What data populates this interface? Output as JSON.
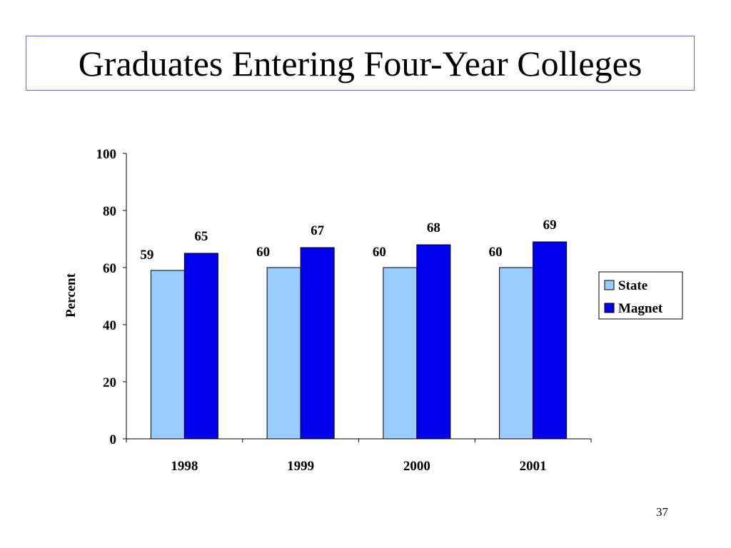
{
  "slide": {
    "title": "Graduates Entering Four-Year Colleges",
    "page_number": "37"
  },
  "colors": {
    "title_border": "#6b6bd6",
    "state": "#99ccff",
    "magnet": "#0000ee"
  },
  "chart_data": {
    "type": "bar",
    "title": "",
    "xlabel": "",
    "ylabel": "Percent",
    "ylim": [
      0,
      100
    ],
    "yticks": [
      "0",
      "20",
      "40",
      "60",
      "80",
      "100"
    ],
    "categories": [
      "1998",
      "1999",
      "2000",
      "2001"
    ],
    "series": [
      {
        "name": "State",
        "values": [
          59,
          60,
          60,
          60
        ],
        "color": "#99ccff"
      },
      {
        "name": "Magnet",
        "values": [
          65,
          67,
          68,
          69
        ],
        "color": "#0000ee"
      }
    ],
    "grid": false,
    "legend_position": "right"
  }
}
